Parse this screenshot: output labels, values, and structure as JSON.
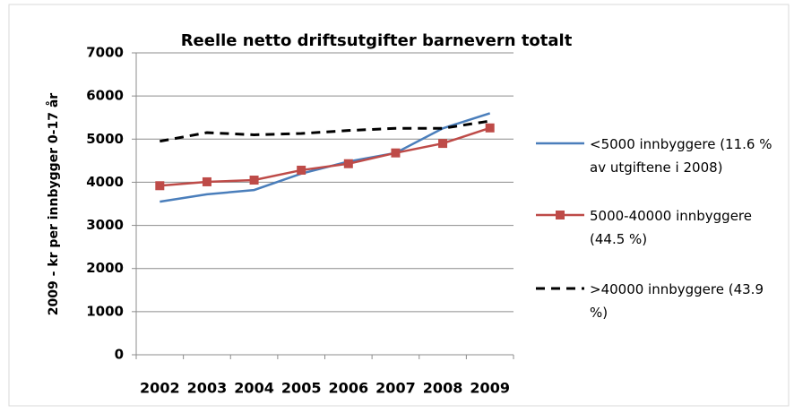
{
  "chart_data": {
    "type": "line",
    "title": "Reelle netto driftsutgifter barnevern totalt",
    "y_label": "2009 - kr per innbygger 0-17 år",
    "categories": [
      "2002",
      "2003",
      "2004",
      "2005",
      "2006",
      "2007",
      "2008",
      "2009"
    ],
    "series": [
      {
        "name": "<5000 innbyggere (11.6 % av utgiftene i 2008)",
        "color": "#4a7ebb",
        "dash": false,
        "marker": false,
        "values": [
          3550,
          3720,
          3820,
          4200,
          4480,
          4680,
          5250,
          5600
        ]
      },
      {
        "name": "5000-40000 innbyggere (44.5 %)",
        "color": "#be4b48",
        "dash": false,
        "marker": true,
        "values": [
          3920,
          4010,
          4050,
          4280,
          4430,
          4680,
          4900,
          5260
        ]
      },
      {
        "name": ">40000 innbyggere (43.9 %)",
        "color": "#000000",
        "dash": true,
        "marker": false,
        "values": [
          4950,
          5150,
          5100,
          5130,
          5200,
          5250,
          5250,
          5420
        ]
      }
    ],
    "ylim": [
      0,
      7000
    ],
    "yticks": [
      0,
      1000,
      2000,
      3000,
      4000,
      5000,
      6000,
      7000
    ],
    "grid": true
  }
}
